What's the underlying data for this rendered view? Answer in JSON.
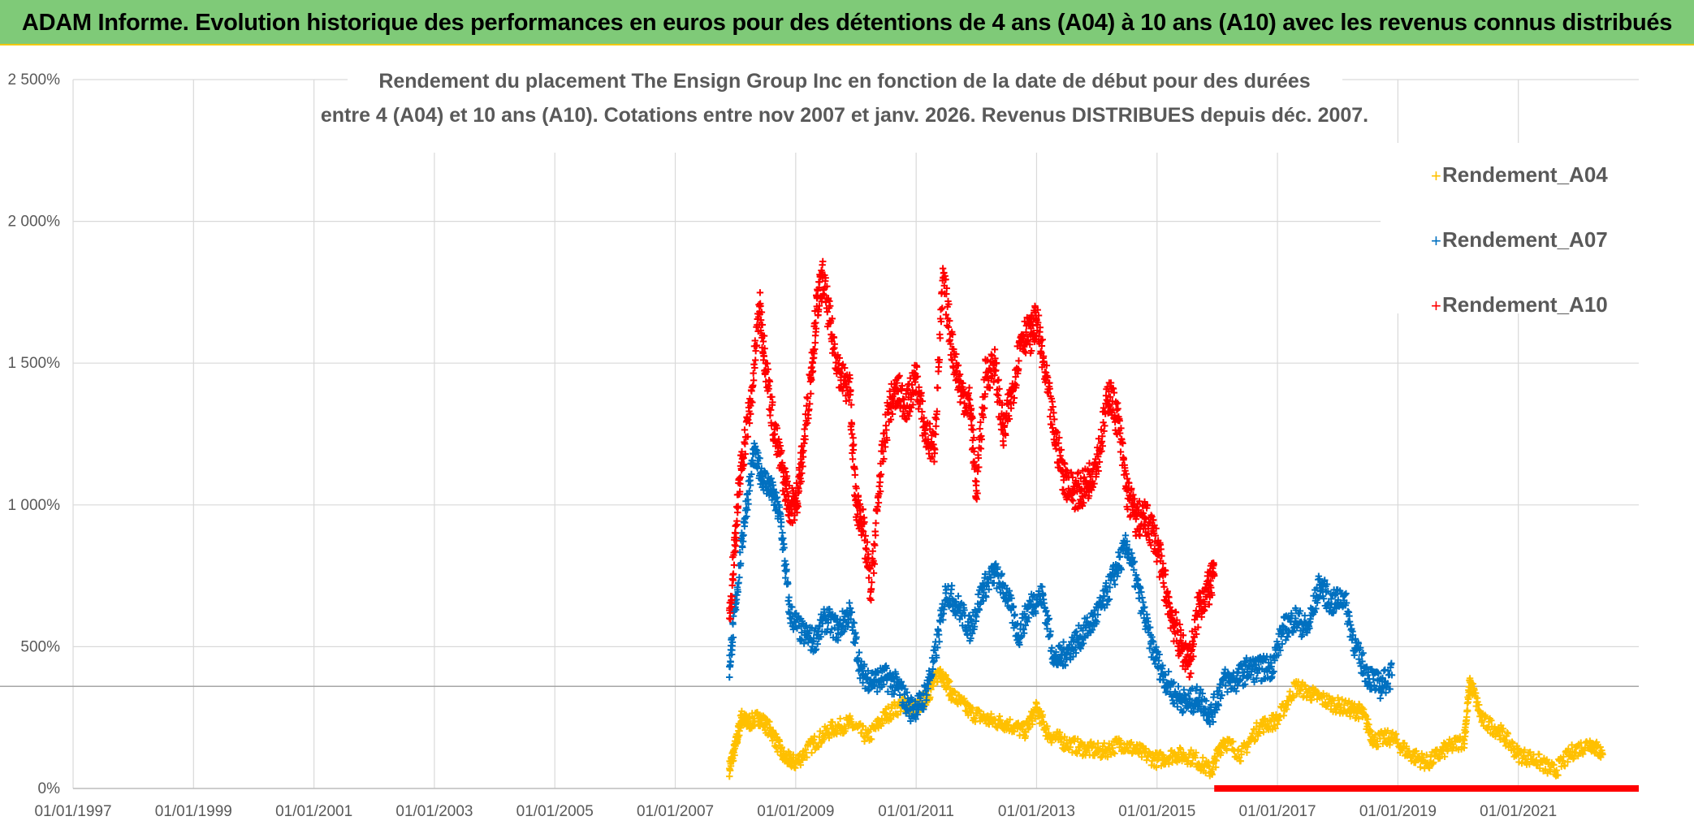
{
  "banner": {
    "title": "ADAM Informe. Evolution historique des performances en euros pour des détentions de 4 ans (A04) à 10 ans (A10) avec les revenus connus distribués"
  },
  "colors": {
    "banner_bg": "#7fca78",
    "banner_border": "#f2c700",
    "A04": "#ffc000",
    "A07": "#0070c0",
    "A10": "#ff0000",
    "grid": "#d9d9d9",
    "text": "#595959"
  },
  "chart_data": {
    "type": "scatter",
    "title_lines": [
      "Rendement du placement The Ensign Group Inc en fonction de la date de début pour des durées",
      "entre 4 (A04) et 10 ans (A10). Cotations entre nov 2007 et janv. 2026. Revenus DISTRIBUES depuis déc. 2007."
    ],
    "xlabel": "",
    "ylabel": "",
    "x_range": [
      1997.0,
      2023.0
    ],
    "ylim": [
      0,
      2500
    ],
    "x_ticks": [
      {
        "value": 1997,
        "label": "01/01/1997"
      },
      {
        "value": 1999,
        "label": "01/01/1999"
      },
      {
        "value": 2001,
        "label": "01/01/2001"
      },
      {
        "value": 2003,
        "label": "01/01/2003"
      },
      {
        "value": 2005,
        "label": "01/01/2005"
      },
      {
        "value": 2007,
        "label": "01/01/2007"
      },
      {
        "value": 2009,
        "label": "01/01/2009"
      },
      {
        "value": 2011,
        "label": "01/01/2011"
      },
      {
        "value": 2013,
        "label": "01/01/2013"
      },
      {
        "value": 2015,
        "label": "01/01/2015"
      },
      {
        "value": 2017,
        "label": "01/01/2017"
      },
      {
        "value": 2019,
        "label": "01/01/2019"
      },
      {
        "value": 2021,
        "label": "01/01/2021"
      }
    ],
    "y_ticks": [
      {
        "value": 0,
        "label": "0%"
      },
      {
        "value": 500,
        "label": "500%"
      },
      {
        "value": 1000,
        "label": "1 000%"
      },
      {
        "value": 1500,
        "label": "1 500%"
      },
      {
        "value": 2000,
        "label": "2 000%"
      },
      {
        "value": 2500,
        "label": "2 500%"
      }
    ],
    "reference_line_y": 360,
    "legend": {
      "placement": "top-right",
      "entries": [
        "Rendement_A04",
        "Rendement_A07",
        "Rendement_A10"
      ]
    },
    "series": [
      {
        "name": "Rendement_A04",
        "color": "#ffc000",
        "x": [
          2007.9,
          2008.0,
          2008.1,
          2008.2,
          2008.4,
          2008.6,
          2008.8,
          2009.0,
          2009.3,
          2009.6,
          2009.9,
          2010.2,
          2010.5,
          2010.8,
          2011.0,
          2011.2,
          2011.4,
          2011.6,
          2011.9,
          2012.2,
          2012.5,
          2012.8,
          2013.0,
          2013.2,
          2013.5,
          2013.8,
          2014.1,
          2014.4,
          2014.7,
          2015.0,
          2015.3,
          2015.6,
          2015.9,
          2016.1,
          2016.4,
          2016.7,
          2017.0,
          2017.3,
          2017.6,
          2017.9,
          2018.2,
          2018.4,
          2018.6,
          2018.9,
          2019.2,
          2019.5,
          2019.8,
          2020.1,
          2020.2,
          2020.4,
          2020.7,
          2021.0,
          2021.3,
          2021.6,
          2021.9,
          2022.2,
          2022.4
        ],
        "y": [
          70,
          150,
          250,
          230,
          250,
          200,
          110,
          90,
          160,
          210,
          230,
          180,
          260,
          300,
          280,
          330,
          420,
          330,
          270,
          240,
          230,
          200,
          280,
          190,
          160,
          140,
          130,
          160,
          130,
          100,
          120,
          110,
          60,
          170,
          120,
          220,
          240,
          360,
          330,
          300,
          280,
          270,
          170,
          180,
          120,
          90,
          140,
          170,
          380,
          240,
          200,
          120,
          100,
          60,
          130,
          160,
          120
        ]
      },
      {
        "name": "Rendement_A07",
        "color": "#0070c0",
        "x": [
          2007.9,
          2008.0,
          2008.15,
          2008.3,
          2008.45,
          2008.6,
          2008.75,
          2008.9,
          2009.1,
          2009.3,
          2009.5,
          2009.7,
          2009.9,
          2010.1,
          2010.3,
          2010.5,
          2010.7,
          2010.9,
          2011.1,
          2011.3,
          2011.5,
          2011.7,
          2011.9,
          2012.1,
          2012.3,
          2012.5,
          2012.7,
          2012.9,
          2013.1,
          2013.3,
          2013.5,
          2013.7,
          2013.9,
          2014.1,
          2014.3,
          2014.5,
          2014.7,
          2014.9,
          2015.1,
          2015.3,
          2015.5,
          2015.7,
          2015.9,
          2016.1,
          2016.3,
          2016.5,
          2016.7,
          2016.9,
          2017.1,
          2017.3,
          2017.5,
          2017.7,
          2017.9,
          2018.1,
          2018.3,
          2018.5,
          2018.7,
          2018.9
        ],
        "y": [
          430,
          650,
          950,
          1180,
          1100,
          1050,
          950,
          620,
          550,
          520,
          600,
          560,
          620,
          400,
          380,
          390,
          360,
          280,
          300,
          450,
          700,
          640,
          560,
          700,
          760,
          690,
          540,
          650,
          680,
          450,
          480,
          530,
          580,
          650,
          760,
          860,
          690,
          510,
          400,
          330,
          300,
          320,
          260,
          380,
          380,
          420,
          420,
          430,
          560,
          600,
          560,
          720,
          650,
          680,
          490,
          400,
          360,
          400
        ]
      },
      {
        "name": "Rendement_A10",
        "color": "#ff0000",
        "x": [
          2007.9,
          2008.0,
          2008.1,
          2008.25,
          2008.4,
          2008.5,
          2008.65,
          2008.8,
          2008.9,
          2009.0,
          2009.1,
          2009.25,
          2009.35,
          2009.45,
          2009.6,
          2009.75,
          2009.9,
          2010.0,
          2010.1,
          2010.25,
          2010.4,
          2010.55,
          2010.7,
          2010.85,
          2011.0,
          2011.15,
          2011.3,
          2011.45,
          2011.6,
          2011.75,
          2011.9,
          2012.0,
          2012.15,
          2012.3,
          2012.45,
          2012.6,
          2012.75,
          2012.9,
          2013.0,
          2013.15,
          2013.3,
          2013.45,
          2013.6,
          2013.75,
          2013.9,
          2014.05,
          2014.2,
          2014.35,
          2014.5,
          2014.65,
          2014.8,
          2014.95,
          2015.1,
          2015.25,
          2015.4,
          2015.55,
          2015.7,
          2015.85,
          2015.95
        ],
        "y": [
          600,
          900,
          1150,
          1350,
          1700,
          1500,
          1250,
          1100,
          1000,
          1000,
          1150,
          1450,
          1700,
          1800,
          1600,
          1450,
          1400,
          1000,
          950,
          700,
          1100,
          1350,
          1400,
          1350,
          1450,
          1250,
          1200,
          1800,
          1550,
          1400,
          1350,
          1050,
          1450,
          1500,
          1250,
          1400,
          1600,
          1600,
          1650,
          1450,
          1250,
          1100,
          1050,
          1050,
          1100,
          1200,
          1400,
          1300,
          1050,
          950,
          950,
          900,
          750,
          600,
          500,
          450,
          650,
          700,
          750
        ]
      }
    ],
    "zero_bar": {
      "color": "#ff0000",
      "x_start": 2015.95,
      "x_end": 2023.0,
      "y": 0
    }
  }
}
